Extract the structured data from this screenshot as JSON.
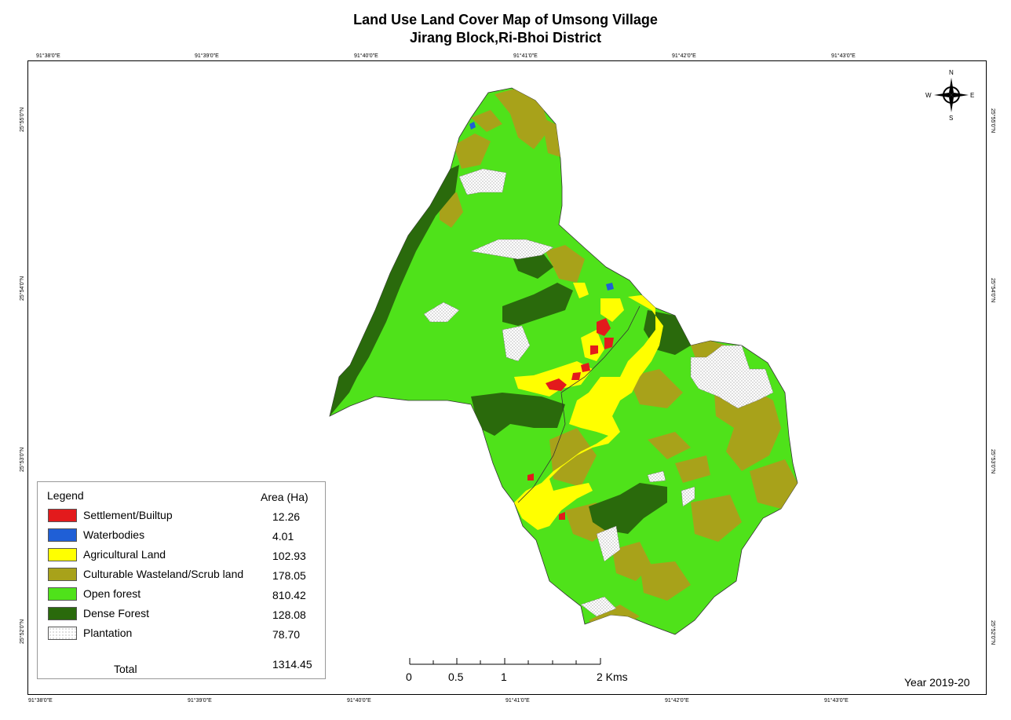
{
  "title": "Land Use Land Cover Map of Umsong Village",
  "subtitle": "Jirang Block,Ri-Bhoi District",
  "grid_labels": {
    "top": [
      "91°38'0\"E",
      "91°39'0\"E",
      "91°40'0\"E",
      "91°41'0\"E",
      "91°42'0\"E",
      "91°43'0\"E"
    ],
    "bottom": [
      "91°38'0\"E",
      "91°39'0\"E",
      "91°40'0\"E",
      "91°41'0\"E",
      "91°42'0\"E",
      "91°43'0\"E"
    ],
    "left": [
      "25°55'0\"N",
      "25°54'0\"N",
      "25°53'0\"N",
      "25°52'0\"N"
    ],
    "right": [
      "25°55'0\"N",
      "25°54'0\"N",
      "25°53'0\"N",
      "25°52'0\"N"
    ]
  },
  "compass": {
    "north": "N",
    "south": "S",
    "east": "E",
    "west": "W"
  },
  "legend": {
    "heading": "Legend",
    "area_heading": "Area (Ha)",
    "items": [
      {
        "label": "Settlement/Builtup",
        "area": "12.26",
        "color": "#e31a1c"
      },
      {
        "label": "Waterbodies",
        "area": "4.01",
        "color": "#1f5fd6"
      },
      {
        "label": "Agricultural Land",
        "area": "102.93",
        "color": "#ffff00"
      },
      {
        "label": "Culturable Wasteland/Scrub land",
        "area": "178.05",
        "color": "#a8a21a"
      },
      {
        "label": "Open forest",
        "area": "810.42",
        "color": "#4fe21a"
      },
      {
        "label": "Dense Forest",
        "area": "128.08",
        "color": "#2a6a0c"
      },
      {
        "label": "Plantation",
        "area": "78.70",
        "color": "#ffffff"
      }
    ],
    "total_label": "Total",
    "total_value": "1314.45"
  },
  "scale_bar": {
    "labels": [
      "0",
      "0.5",
      "1",
      "2 Kms"
    ]
  },
  "year": "Year 2019-20"
}
